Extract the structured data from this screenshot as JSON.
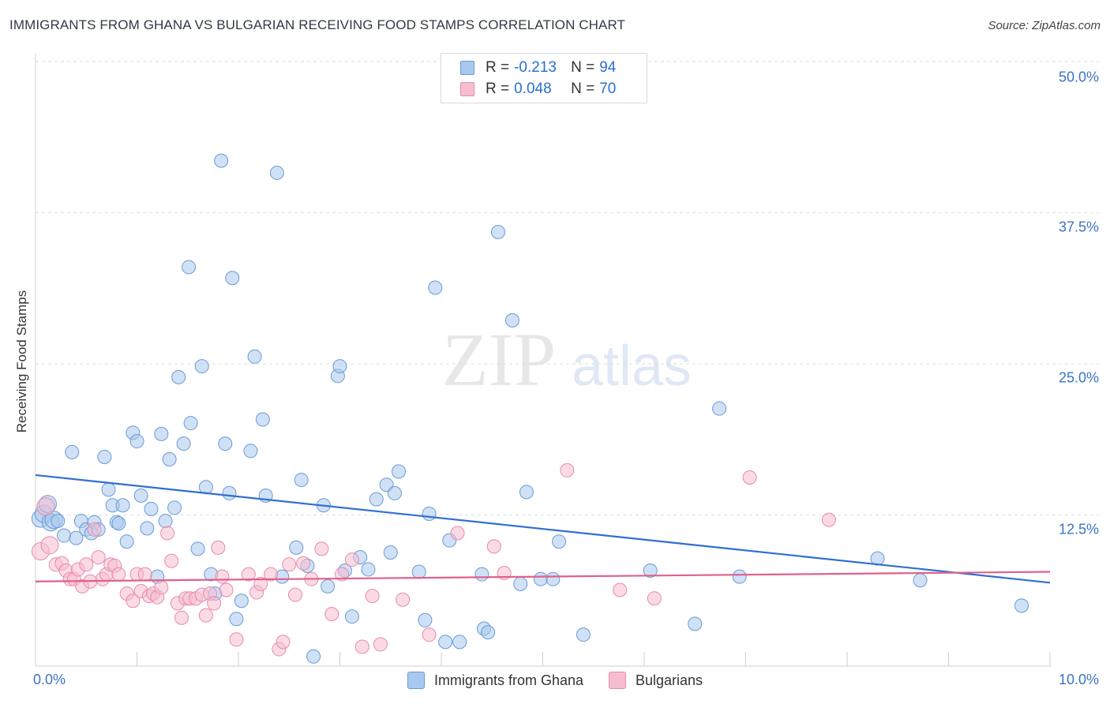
{
  "header": {
    "title": "IMMIGRANTS FROM GHANA VS BULGARIAN RECEIVING FOOD STAMPS CORRELATION CHART",
    "source": "Source: ZipAtlas.com"
  },
  "watermark": {
    "zip": "ZIP",
    "atlas": "atlas"
  },
  "legend_top": [
    {
      "r_label": "R = ",
      "r_value": "-0.213",
      "n_label": "N = ",
      "n_value": "94"
    },
    {
      "r_label": "R = ",
      "r_value": "0.048",
      "n_label": "N = ",
      "n_value": "70"
    }
  ],
  "colors": {
    "ghana_fill": "#a9c8ef",
    "ghana_stroke": "#6a9ad6",
    "ghana_line": "#2f6fd1",
    "bulgarian_fill": "#f6bdd0",
    "bulgarian_stroke": "#e88aaa",
    "bulgarian_line": "#e0608c",
    "grid": "#dedede",
    "axis_text": "#3b74c4"
  },
  "chart_data": {
    "type": "scatter",
    "title": "IMMIGRANTS FROM GHANA VS BULGARIAN RECEIVING FOOD STAMPS CORRELATION CHART",
    "xlabel": "",
    "ylabel": "Receiving Food Stamps",
    "xlim": [
      0,
      10
    ],
    "ylim": [
      0,
      50
    ],
    "x_tick_labels": [
      "0.0%",
      "10.0%"
    ],
    "y_ticks": [
      12.5,
      25.0,
      37.5,
      50.0
    ],
    "y_tick_labels": [
      "12.5%",
      "25.0%",
      "37.5%",
      "50.0%"
    ],
    "grid": true,
    "legend_position": "bottom",
    "series": [
      {
        "name": "Immigrants from Ghana",
        "r": -0.213,
        "n": 94,
        "trend": {
          "x": [
            0,
            10
          ],
          "y": [
            15.8,
            6.9
          ]
        },
        "points": [
          [
            0.05,
            12.2
          ],
          [
            0.08,
            12.6
          ],
          [
            0.12,
            13.4
          ],
          [
            0.15,
            11.9
          ],
          [
            0.18,
            12.1
          ],
          [
            0.22,
            12.0
          ],
          [
            0.28,
            10.8
          ],
          [
            0.36,
            17.7
          ],
          [
            0.4,
            10.6
          ],
          [
            0.45,
            12.0
          ],
          [
            0.5,
            11.3
          ],
          [
            0.55,
            11.0
          ],
          [
            0.58,
            11.9
          ],
          [
            0.62,
            11.3
          ],
          [
            0.68,
            17.3
          ],
          [
            0.72,
            14.6
          ],
          [
            0.76,
            13.3
          ],
          [
            0.8,
            11.9
          ],
          [
            0.82,
            11.8
          ],
          [
            0.86,
            13.3
          ],
          [
            0.9,
            10.3
          ],
          [
            0.96,
            19.3
          ],
          [
            1.0,
            18.6
          ],
          [
            1.04,
            14.1
          ],
          [
            1.1,
            11.4
          ],
          [
            1.14,
            13.0
          ],
          [
            1.2,
            7.4
          ],
          [
            1.24,
            19.2
          ],
          [
            1.28,
            12.0
          ],
          [
            1.32,
            17.1
          ],
          [
            1.37,
            13.1
          ],
          [
            1.41,
            23.9
          ],
          [
            1.46,
            18.4
          ],
          [
            1.51,
            33.0
          ],
          [
            1.53,
            20.1
          ],
          [
            1.6,
            9.7
          ],
          [
            1.64,
            24.8
          ],
          [
            1.68,
            14.8
          ],
          [
            1.73,
            7.6
          ],
          [
            1.77,
            6.0
          ],
          [
            1.83,
            41.8
          ],
          [
            1.87,
            18.4
          ],
          [
            1.91,
            14.3
          ],
          [
            1.94,
            32.1
          ],
          [
            1.98,
            3.9
          ],
          [
            2.03,
            5.4
          ],
          [
            2.12,
            17.8
          ],
          [
            2.16,
            25.6
          ],
          [
            2.24,
            20.4
          ],
          [
            2.27,
            14.1
          ],
          [
            2.38,
            40.8
          ],
          [
            2.43,
            7.4
          ],
          [
            2.57,
            9.8
          ],
          [
            2.62,
            15.4
          ],
          [
            2.68,
            8.3
          ],
          [
            2.74,
            0.8
          ],
          [
            2.84,
            13.3
          ],
          [
            2.88,
            6.6
          ],
          [
            2.98,
            24.0
          ],
          [
            3.0,
            24.8
          ],
          [
            3.05,
            7.9
          ],
          [
            3.12,
            4.1
          ],
          [
            3.2,
            9.0
          ],
          [
            3.28,
            8.0
          ],
          [
            3.36,
            13.8
          ],
          [
            3.46,
            15.0
          ],
          [
            3.5,
            9.4
          ],
          [
            3.54,
            14.3
          ],
          [
            3.58,
            16.1
          ],
          [
            3.78,
            7.8
          ],
          [
            3.84,
            3.8
          ],
          [
            3.88,
            12.6
          ],
          [
            3.94,
            31.3
          ],
          [
            4.04,
            2.0
          ],
          [
            4.08,
            10.4
          ],
          [
            4.18,
            2.0
          ],
          [
            4.4,
            7.6
          ],
          [
            4.42,
            3.1
          ],
          [
            4.46,
            2.8
          ],
          [
            4.56,
            35.9
          ],
          [
            4.7,
            28.6
          ],
          [
            4.78,
            6.8
          ],
          [
            4.84,
            14.4
          ],
          [
            4.98,
            7.2
          ],
          [
            5.1,
            7.2
          ],
          [
            5.16,
            10.3
          ],
          [
            5.4,
            2.6
          ],
          [
            6.06,
            7.9
          ],
          [
            6.5,
            3.5
          ],
          [
            6.74,
            21.3
          ],
          [
            6.94,
            7.4
          ],
          [
            8.3,
            8.9
          ],
          [
            8.72,
            7.1
          ],
          [
            9.72,
            5.0
          ]
        ]
      },
      {
        "name": "Bulgarians",
        "r": 0.048,
        "n": 70,
        "trend": {
          "x": [
            0,
            10
          ],
          "y": [
            7.0,
            7.8
          ]
        },
        "points": [
          [
            0.05,
            9.5
          ],
          [
            0.1,
            13.2
          ],
          [
            0.14,
            10.0
          ],
          [
            0.2,
            8.4
          ],
          [
            0.26,
            8.5
          ],
          [
            0.3,
            7.9
          ],
          [
            0.34,
            7.2
          ],
          [
            0.38,
            7.2
          ],
          [
            0.42,
            8.0
          ],
          [
            0.46,
            6.6
          ],
          [
            0.5,
            8.4
          ],
          [
            0.54,
            7.0
          ],
          [
            0.58,
            11.3
          ],
          [
            0.62,
            9.0
          ],
          [
            0.66,
            7.2
          ],
          [
            0.7,
            7.6
          ],
          [
            0.74,
            8.4
          ],
          [
            0.78,
            8.3
          ],
          [
            0.82,
            7.6
          ],
          [
            0.9,
            6.0
          ],
          [
            0.96,
            5.4
          ],
          [
            1.0,
            7.6
          ],
          [
            1.04,
            6.2
          ],
          [
            1.08,
            7.6
          ],
          [
            1.12,
            5.8
          ],
          [
            1.16,
            6.0
          ],
          [
            1.2,
            5.7
          ],
          [
            1.24,
            6.5
          ],
          [
            1.3,
            11.0
          ],
          [
            1.34,
            8.7
          ],
          [
            1.4,
            5.2
          ],
          [
            1.44,
            4.0
          ],
          [
            1.48,
            5.6
          ],
          [
            1.52,
            5.6
          ],
          [
            1.58,
            5.6
          ],
          [
            1.64,
            5.9
          ],
          [
            1.68,
            4.2
          ],
          [
            1.72,
            6.0
          ],
          [
            1.76,
            5.2
          ],
          [
            1.8,
            9.8
          ],
          [
            1.84,
            7.4
          ],
          [
            1.88,
            6.3
          ],
          [
            1.98,
            2.2
          ],
          [
            2.1,
            7.6
          ],
          [
            2.18,
            6.1
          ],
          [
            2.22,
            6.8
          ],
          [
            2.32,
            7.6
          ],
          [
            2.4,
            1.4
          ],
          [
            2.44,
            2.0
          ],
          [
            2.5,
            8.4
          ],
          [
            2.56,
            5.9
          ],
          [
            2.64,
            8.5
          ],
          [
            2.72,
            7.2
          ],
          [
            2.82,
            9.7
          ],
          [
            2.92,
            4.3
          ],
          [
            3.02,
            7.6
          ],
          [
            3.12,
            8.8
          ],
          [
            3.22,
            1.6
          ],
          [
            3.32,
            5.8
          ],
          [
            3.4,
            1.8
          ],
          [
            3.62,
            5.5
          ],
          [
            3.88,
            2.6
          ],
          [
            4.16,
            11.0
          ],
          [
            4.52,
            9.9
          ],
          [
            4.62,
            7.7
          ],
          [
            5.24,
            16.2
          ],
          [
            5.76,
            6.3
          ],
          [
            6.1,
            5.6
          ],
          [
            7.04,
            15.6
          ],
          [
            7.82,
            12.1
          ]
        ]
      }
    ]
  },
  "bottom_legend": [
    {
      "label": "Immigrants from Ghana"
    },
    {
      "label": "Bulgarians"
    }
  ]
}
